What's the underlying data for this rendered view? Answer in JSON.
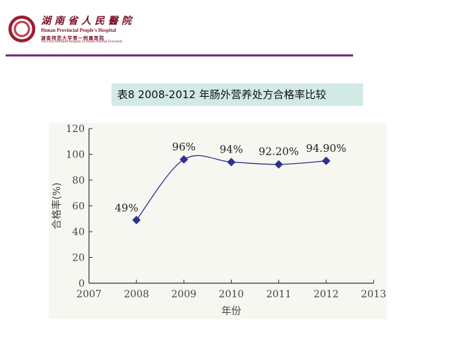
{
  "header": {
    "logo_cn": "湖南省人民醫院",
    "logo_en": "Hunan Provincial People's Hospital",
    "logo_cn_sub": "湖南师范大学第一附属医院",
    "logo_en_sub": "The First Affiliated Hospital of Hunan Normal University"
  },
  "colors": {
    "accent_line": "#7b2c7e",
    "title_bg": "#d2eae6",
    "marker": "#2e3192",
    "brand": "#7a1428"
  },
  "slide": {
    "title": "表8 2008-2012 年肠外营养处方合格率比较"
  },
  "chart_data": {
    "type": "line",
    "title": "表8 2008-2012 年肠外营养处方合格率比较",
    "xlabel": "年份",
    "ylabel": "合格率(%)",
    "xlim": [
      2007,
      2013
    ],
    "ylim": [
      0,
      120
    ],
    "x_ticks": [
      2007,
      2008,
      2009,
      2010,
      2011,
      2012,
      2013
    ],
    "y_ticks": [
      0,
      20,
      40,
      60,
      80,
      100,
      120
    ],
    "x": [
      2008,
      2009,
      2010,
      2011,
      2012
    ],
    "values": [
      49,
      96,
      94,
      92.2,
      94.9
    ],
    "data_labels": [
      "49%",
      "96%",
      "94%",
      "92.20%",
      "94.90%"
    ],
    "grid": false,
    "legend": "none",
    "smooth": true
  }
}
